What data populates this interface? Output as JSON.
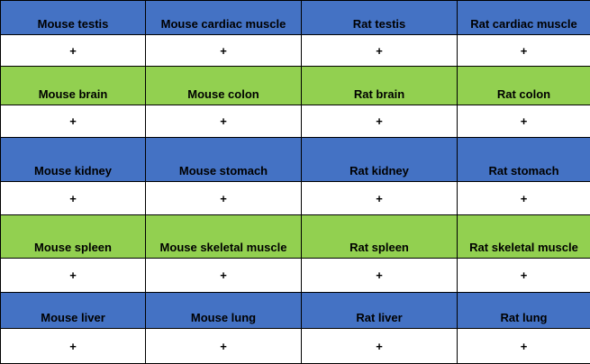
{
  "rows": [
    {
      "theme": "blue",
      "labels": [
        "Mouse testis",
        "Mouse cardiac muscle",
        "Rat testis",
        "Rat cardiac muscle"
      ],
      "values": [
        "+",
        "+",
        "+",
        "+"
      ]
    },
    {
      "theme": "green",
      "labels": [
        "Mouse brain",
        "Mouse colon",
        "Rat brain",
        "Rat colon"
      ],
      "values": [
        "+",
        "+",
        "+",
        "+"
      ]
    },
    {
      "theme": "blue",
      "labels": [
        "Mouse kidney",
        "Mouse stomach",
        "Rat kidney",
        "Rat stomach"
      ],
      "values": [
        "+",
        "+",
        "+",
        "+"
      ]
    },
    {
      "theme": "green",
      "labels": [
        "Mouse spleen",
        "Mouse skeletal muscle",
        "Rat spleen",
        "Rat skeletal muscle"
      ],
      "values": [
        "+",
        "+",
        "+",
        "+"
      ]
    },
    {
      "theme": "blue",
      "labels": [
        "Mouse liver",
        "Mouse lung",
        "Rat liver",
        "Rat lung"
      ],
      "values": [
        "+",
        "+",
        "+",
        "+"
      ]
    }
  ],
  "colors": {
    "blue": "#4472c4",
    "green": "#92d050",
    "value_bg": "#ffffff"
  }
}
